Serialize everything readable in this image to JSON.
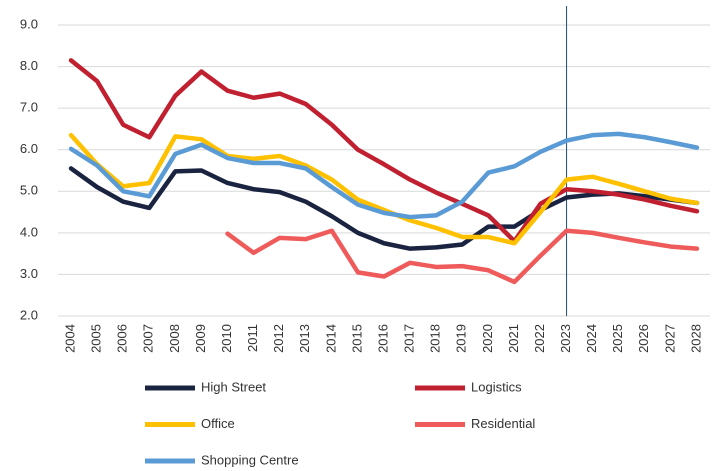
{
  "chart_data": {
    "type": "line",
    "categories": [
      "2004",
      "2005",
      "2006",
      "2007",
      "2008",
      "2009",
      "2010",
      "2011",
      "2012",
      "2013",
      "2014",
      "2015",
      "2016",
      "2017",
      "2018",
      "2019",
      "2020",
      "2021",
      "2022",
      "2023",
      "2024",
      "2025",
      "2026",
      "2027",
      "2028"
    ],
    "ylim": [
      2,
      9
    ],
    "yticks": [
      {
        "value": 2,
        "label": "2.0"
      },
      {
        "value": 3,
        "label": "3.0"
      },
      {
        "value": 4,
        "label": "4.0"
      },
      {
        "value": 5,
        "label": "5.0"
      },
      {
        "value": 6,
        "label": "6.0"
      },
      {
        "value": 7,
        "label": "7.0"
      },
      {
        "value": 8,
        "label": "8.0"
      },
      {
        "value": 9,
        "label": "9.0"
      }
    ],
    "grid": true,
    "vline": "2023",
    "legend": "bottom",
    "series": [
      {
        "name": "High Street",
        "color": "#1a2340",
        "values": [
          5.55,
          5.1,
          4.75,
          4.6,
          5.48,
          5.5,
          5.2,
          5.05,
          4.98,
          4.75,
          4.4,
          4.0,
          3.75,
          3.62,
          3.65,
          3.72,
          4.15,
          4.15,
          4.55,
          4.85,
          4.92,
          4.95,
          4.88,
          4.8,
          4.72
        ]
      },
      {
        "name": "Logistics",
        "color": "#c0202f",
        "values": [
          8.15,
          7.65,
          6.6,
          6.3,
          7.3,
          7.88,
          7.42,
          7.25,
          7.35,
          7.1,
          6.6,
          6.0,
          5.65,
          5.28,
          4.97,
          4.7,
          4.42,
          3.8,
          4.7,
          5.05,
          5.0,
          4.92,
          4.8,
          4.65,
          4.52
        ]
      },
      {
        "name": "Office",
        "color": "#ffc000",
        "values": [
          6.35,
          5.65,
          5.12,
          5.2,
          6.32,
          6.25,
          5.85,
          5.78,
          5.85,
          5.62,
          5.28,
          4.8,
          4.55,
          4.3,
          4.12,
          3.9,
          3.9,
          3.75,
          4.5,
          5.28,
          5.35,
          5.18,
          5.0,
          4.82,
          4.72
        ]
      },
      {
        "name": "Residential",
        "color": "#ef5b5b",
        "values": [
          null,
          null,
          null,
          null,
          null,
          null,
          3.98,
          3.52,
          3.88,
          3.85,
          4.05,
          3.05,
          2.95,
          3.28,
          3.18,
          3.2,
          3.1,
          2.82,
          3.45,
          4.05,
          4.0,
          3.88,
          3.77,
          3.67,
          3.62
        ]
      },
      {
        "name": "Shopping Centre",
        "color": "#5b9bd5",
        "values": [
          6.02,
          5.62,
          5.0,
          4.88,
          5.9,
          6.12,
          5.8,
          5.68,
          5.68,
          5.55,
          5.1,
          4.68,
          4.48,
          4.38,
          4.42,
          4.75,
          5.45,
          5.6,
          5.95,
          6.22,
          6.35,
          6.38,
          6.3,
          6.18,
          6.05
        ]
      }
    ]
  }
}
